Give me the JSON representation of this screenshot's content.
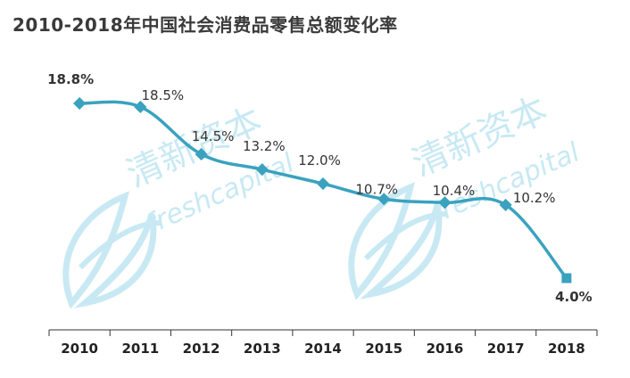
{
  "title": "2010-2018年中国社会消费品零售总额变化率",
  "watermark": {
    "cn": "清新资本",
    "en": "freshcapital",
    "color": "#bfe6f2"
  },
  "colors": {
    "line": "#3aa2bf",
    "highlight_label": "#2b9ec0",
    "label": "#333333",
    "axis": "#333333"
  },
  "chart_data": {
    "type": "line",
    "title": "2010-2018年中国社会消费品零售总额变化率",
    "xlabel": "",
    "ylabel": "",
    "categories": [
      "2010",
      "2011",
      "2012",
      "2013",
      "2014",
      "2015",
      "2016",
      "2017",
      "2018"
    ],
    "values": [
      18.8,
      18.5,
      14.5,
      13.2,
      12.0,
      10.7,
      10.4,
      10.2,
      4.0
    ],
    "labels": [
      "18.8%",
      "18.5%",
      "14.5%",
      "13.2%",
      "12.0%",
      "10.7%",
      "10.4%",
      "10.2%",
      "4.0%"
    ],
    "highlight": [
      true,
      false,
      false,
      false,
      false,
      false,
      false,
      false,
      true
    ],
    "ylim": [
      0,
      25
    ],
    "grid": false,
    "smooth": true
  }
}
